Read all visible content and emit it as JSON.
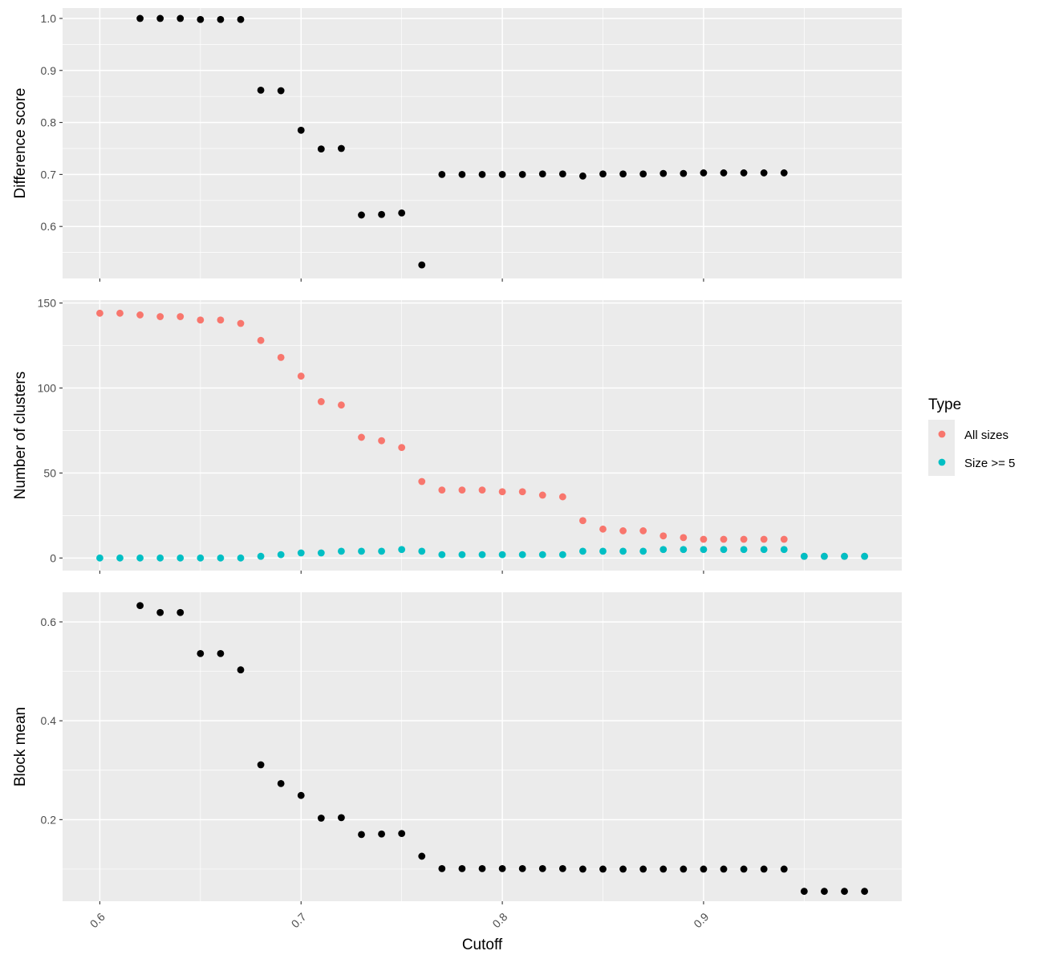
{
  "chart_data": {
    "type": "scatter",
    "xlabel": "Cutoff",
    "xlim": [
      0.5815,
      0.9985
    ],
    "xticks": [
      0.6,
      0.7,
      0.8,
      0.9
    ],
    "xtick_labels": [
      "0.6",
      "0.7",
      "0.8",
      "0.9"
    ],
    "grid": true,
    "legend": {
      "title": "Type",
      "placement": "right",
      "entries": [
        {
          "label": "All sizes",
          "color": "#F8766D"
        },
        {
          "label": "Size >= 5",
          "color": "#00BFC4"
        }
      ]
    },
    "panels": [
      {
        "ylabel": "Difference score",
        "ylim": [
          0.5,
          1.02
        ],
        "yticks": [
          0.6,
          0.7,
          0.8,
          0.9,
          1.0
        ],
        "ytick_labels": [
          "0.6",
          "0.7",
          "0.8",
          "0.9",
          "1.0"
        ],
        "series": [
          {
            "color": "#000000",
            "x": [
              0.62,
              0.63,
              0.64,
              0.65,
              0.66,
              0.67,
              0.68,
              0.69,
              0.7,
              0.71,
              0.72,
              0.73,
              0.74,
              0.75,
              0.76,
              0.77,
              0.78,
              0.79,
              0.8,
              0.81,
              0.82,
              0.83,
              0.84,
              0.85,
              0.86,
              0.87,
              0.88,
              0.89,
              0.9,
              0.91,
              0.92,
              0.93,
              0.94
            ],
            "y": [
              1.0,
              1.0,
              1.0,
              0.998,
              0.998,
              0.998,
              0.862,
              0.861,
              0.785,
              0.749,
              0.75,
              0.622,
              0.623,
              0.626,
              0.526,
              0.7,
              0.7,
              0.7,
              0.7,
              0.7,
              0.701,
              0.701,
              0.697,
              0.701,
              0.701,
              0.701,
              0.702,
              0.702,
              0.703,
              0.703,
              0.703,
              0.703,
              0.703
            ]
          }
        ]
      },
      {
        "ylabel": "Number of clusters",
        "ylim": [
          -7.4,
          151.7
        ],
        "yticks": [
          0,
          50,
          100,
          150
        ],
        "ytick_labels": [
          "0",
          "50",
          "100",
          "150"
        ],
        "series": [
          {
            "name": "All sizes",
            "color": "#F8766D",
            "x": [
              0.6,
              0.61,
              0.62,
              0.63,
              0.64,
              0.65,
              0.66,
              0.67,
              0.68,
              0.69,
              0.7,
              0.71,
              0.72,
              0.73,
              0.74,
              0.75,
              0.76,
              0.77,
              0.78,
              0.79,
              0.8,
              0.81,
              0.82,
              0.83,
              0.84,
              0.85,
              0.86,
              0.87,
              0.88,
              0.89,
              0.9,
              0.91,
              0.92,
              0.93,
              0.94,
              0.95,
              0.96,
              0.97,
              0.98
            ],
            "y": [
              144,
              144,
              143,
              142,
              142,
              140,
              140,
              138,
              128,
              118,
              107,
              92,
              90,
              71,
              69,
              65,
              45,
              40,
              40,
              40,
              39,
              39,
              37,
              36,
              22,
              17,
              16,
              16,
              13,
              12,
              11,
              11,
              11,
              11,
              11,
              1,
              1,
              1,
              1
            ]
          },
          {
            "name": "Size >= 5",
            "color": "#00BFC4",
            "x": [
              0.6,
              0.61,
              0.62,
              0.63,
              0.64,
              0.65,
              0.66,
              0.67,
              0.68,
              0.69,
              0.7,
              0.71,
              0.72,
              0.73,
              0.74,
              0.75,
              0.76,
              0.77,
              0.78,
              0.79,
              0.8,
              0.81,
              0.82,
              0.83,
              0.84,
              0.85,
              0.86,
              0.87,
              0.88,
              0.89,
              0.9,
              0.91,
              0.92,
              0.93,
              0.94,
              0.95,
              0.96,
              0.97,
              0.98
            ],
            "y": [
              0,
              0,
              0,
              0,
              0,
              0,
              0,
              0,
              1,
              2,
              3,
              3,
              4,
              4,
              4,
              5,
              4,
              2,
              2,
              2,
              2,
              2,
              2,
              2,
              4,
              4,
              4,
              4,
              5,
              5,
              5,
              5,
              5,
              5,
              5,
              1,
              1,
              1,
              1
            ]
          }
        ]
      },
      {
        "ylabel": "Block mean",
        "ylim": [
          0.035,
          0.66
        ],
        "yticks": [
          0.2,
          0.4,
          0.6
        ],
        "ytick_labels": [
          "0.2",
          "0.4",
          "0.6"
        ],
        "series": [
          {
            "color": "#000000",
            "x": [
              0.62,
              0.63,
              0.64,
              0.65,
              0.66,
              0.67,
              0.68,
              0.69,
              0.7,
              0.71,
              0.72,
              0.73,
              0.74,
              0.75,
              0.76,
              0.77,
              0.78,
              0.79,
              0.8,
              0.81,
              0.82,
              0.83,
              0.84,
              0.85,
              0.86,
              0.87,
              0.88,
              0.89,
              0.9,
              0.91,
              0.92,
              0.93,
              0.94,
              0.95,
              0.96,
              0.97,
              0.98
            ],
            "y": [
              0.633,
              0.619,
              0.619,
              0.536,
              0.536,
              0.503,
              0.311,
              0.273,
              0.249,
              0.203,
              0.204,
              0.17,
              0.171,
              0.172,
              0.126,
              0.101,
              0.101,
              0.101,
              0.101,
              0.101,
              0.101,
              0.101,
              0.1,
              0.1,
              0.1,
              0.1,
              0.1,
              0.1,
              0.1,
              0.1,
              0.1,
              0.1,
              0.1,
              0.055,
              0.055,
              0.055,
              0.055
            ]
          }
        ]
      }
    ]
  }
}
